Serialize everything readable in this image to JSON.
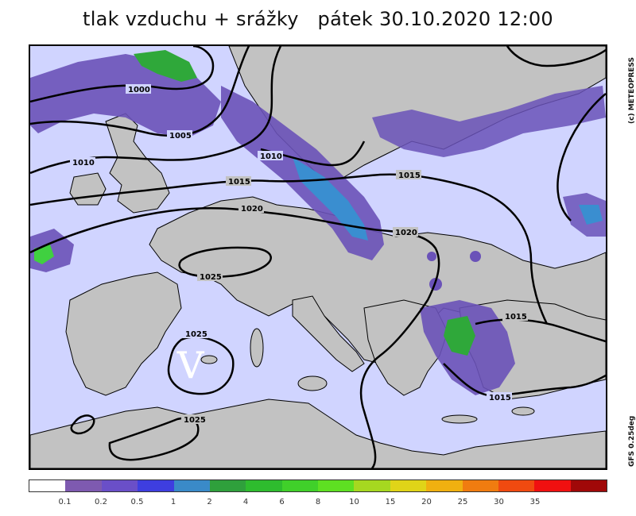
{
  "title": "tlak vzduchu + srážky   pátek 30.10.2020 12:00",
  "credit": "(c) METEOPRESS",
  "model": "GFS 0.25deg",
  "high_marker": "V",
  "isobar_labels": [
    "1000",
    "1005",
    "1010",
    "1010",
    "1015",
    "1015",
    "1020",
    "1020",
    "1025",
    "1025",
    "1025",
    "1015",
    "1015"
  ],
  "colors": {
    "land": "#c2c2c2",
    "sea": "#d0d4ff",
    "precip_light": "#6a52b8",
    "precip_mid": "#4c5ae0",
    "precip_heavy": "#3a8ed0",
    "precip_green": "#2fa83a",
    "precip_lime": "#40d040"
  },
  "legend": {
    "swatches": [
      "#ffffff",
      "#7e5ab0",
      "#6a4fc8",
      "#3e3ee0",
      "#3a8ac8",
      "#2fa03c",
      "#2ebc2e",
      "#40d02a",
      "#5ee022",
      "#a6d820",
      "#e0d418",
      "#f0b010",
      "#f07c10",
      "#f04a10",
      "#f01010",
      "#a00808"
    ],
    "ticks": [
      "0.1",
      "0.2",
      "0.5",
      "1",
      "2",
      "4",
      "6",
      "8",
      "10",
      "15",
      "20",
      "25",
      "30",
      "35"
    ]
  }
}
